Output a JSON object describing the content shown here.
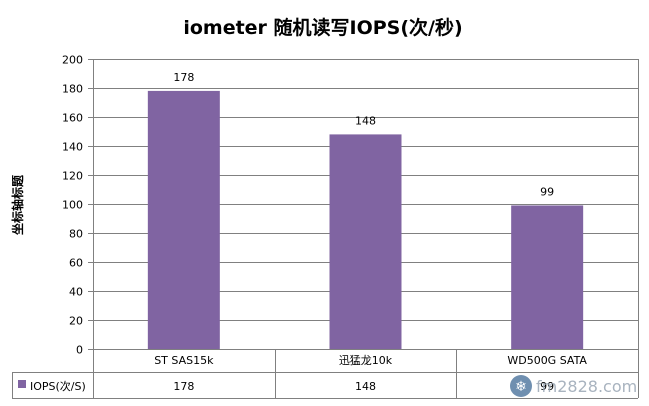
{
  "chart_data": {
    "type": "bar",
    "title": "iometer  随机读写IOPS(次/秒)",
    "ylabel": "坐标轴标题",
    "xlabel": "",
    "categories": [
      "ST SAS15k",
      "迅猛龙10k",
      "WD500G SATA"
    ],
    "series": [
      {
        "name": "IOPS(次/S)",
        "values": [
          178,
          148,
          99
        ],
        "color": "#8064a2"
      }
    ],
    "ylim": [
      0,
      200
    ],
    "yticks": [
      0,
      20,
      40,
      60,
      80,
      100,
      120,
      140,
      160,
      180,
      200
    ],
    "grid": true,
    "legend": "data-table"
  },
  "watermark": {
    "text": "fm2828.com",
    "icon": "snowflake-icon"
  }
}
